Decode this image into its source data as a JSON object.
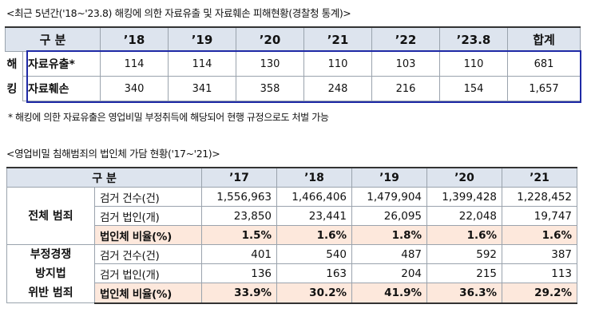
{
  "table1": {
    "caption": "<최근 5년간('18~'23.8) 해킹에 의한 자료유출 및 자료훼손 피해현황(경찰청 통계)>",
    "header": [
      "구 분",
      "’18",
      "’19",
      "’20",
      "’21",
      "’22",
      "’23.8",
      "합계"
    ],
    "side_label": [
      "해",
      "킹"
    ],
    "rows": [
      {
        "label": "자료유출*",
        "values": [
          "114",
          "114",
          "130",
          "110",
          "103",
          "110",
          "681"
        ]
      },
      {
        "label": "자료훼손",
        "values": [
          "340",
          "341",
          "358",
          "248",
          "216",
          "154",
          "1,657"
        ]
      }
    ],
    "note": "* 해킹에 의한 자료유출은 영업비밀 부정취득에 해당되어 현행 규정으로도 처벌 가능",
    "highlight_color": "#1f2aa6"
  },
  "table2": {
    "caption": "<영업비밀 침해범죄의 법인체 가담 현황('17~'21)>",
    "header": [
      "구 분",
      "’17",
      "’18",
      "’19",
      "’20",
      "’21"
    ],
    "groups": [
      {
        "label": [
          "전체 범죄"
        ],
        "rows": [
          {
            "label": "검거 건수(건)",
            "values": [
              "1,556,963",
              "1,466,406",
              "1,479,904",
              "1,399,428",
              "1,228,452"
            ]
          },
          {
            "label": "검거 법인(개)",
            "values": [
              "23,850",
              "23,441",
              "26,095",
              "22,048",
              "19,747"
            ]
          },
          {
            "label": "법인체 비율(%)",
            "values": [
              "1.5%",
              "1.6%",
              "1.8%",
              "1.6%",
              "1.6%"
            ]
          }
        ]
      },
      {
        "label": [
          "부정경쟁",
          "방지법",
          "위반 범죄"
        ],
        "rows": [
          {
            "label": "검거 건수(건)",
            "values": [
              "401",
              "540",
              "487",
              "592",
              "387"
            ]
          },
          {
            "label": "검거 법인(개)",
            "values": [
              "136",
              "163",
              "204",
              "215",
              "113"
            ]
          },
          {
            "label": "법인체 비율(%)",
            "values": [
              "33.9%",
              "30.2%",
              "41.9%",
              "36.3%",
              "29.2%"
            ]
          }
        ]
      }
    ],
    "ratio_row_color": "#fde8dc",
    "header_color": "#dde4ee"
  }
}
